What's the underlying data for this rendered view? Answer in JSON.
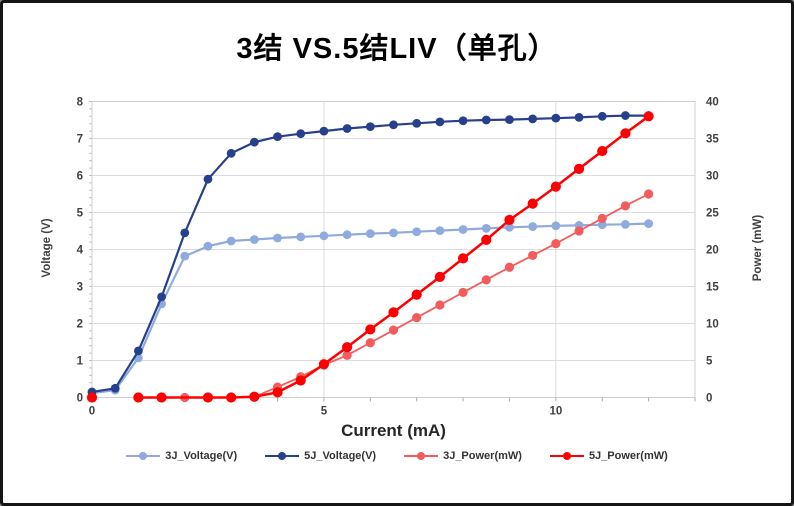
{
  "title": "3结 VS.5结LIV（单孔）",
  "axes": {
    "x": {
      "label": "Current (mA)",
      "ticks": [
        0,
        5,
        10
      ],
      "min": 0,
      "max": 13,
      "minor_step": 1
    },
    "y_left": {
      "label": "Voltage (V)",
      "ticks": [
        0,
        1,
        2,
        3,
        4,
        5,
        6,
        7,
        8
      ],
      "min": 0,
      "max": 8,
      "minor_step": 0.2
    },
    "y_right": {
      "label": "Power (mW)",
      "ticks": [
        0,
        5,
        10,
        15,
        20,
        25,
        30,
        35,
        40
      ],
      "min": 0,
      "max": 40
    }
  },
  "legend": [
    {
      "label": "3J_Voltage(V)",
      "color": "#8FAADC"
    },
    {
      "label": "5J_Voltage(V)",
      "color": "#27408B"
    },
    {
      "label": "3J_Power(mW)",
      "color": "#F25C5C"
    },
    {
      "label": "5J_Power(mW)",
      "color": "#FE0000"
    }
  ],
  "chart_data": {
    "type": "line",
    "title": "3结 VS.5结LIV（单孔）",
    "xlabel": "Current (mA)",
    "ylabel_left": "Voltage (V)",
    "ylabel_right": "Power (mW)",
    "xlim": [
      0,
      13
    ],
    "ylim_left": [
      0,
      8
    ],
    "ylim_right": [
      0,
      40
    ],
    "grid": {
      "horizontal": true,
      "vertical_at": [
        5,
        10
      ]
    },
    "legend_position": "bottom",
    "x": [
      0,
      0.5,
      1,
      1.5,
      2,
      2.5,
      3,
      3.5,
      4,
      4.5,
      5,
      5.5,
      6,
      6.5,
      7,
      7.5,
      8,
      8.5,
      9,
      9.5,
      10,
      10.5,
      11,
      11.5,
      12
    ],
    "series": [
      {
        "name": "3J_Voltage(V)",
        "axis": "left",
        "color": "#8FAADC",
        "line_width": 2.2,
        "marker_r": 4.4,
        "values": [
          0.12,
          0.2,
          1.07,
          2.53,
          3.82,
          4.09,
          4.23,
          4.27,
          4.31,
          4.34,
          4.37,
          4.4,
          4.43,
          4.45,
          4.48,
          4.51,
          4.54,
          4.57,
          4.6,
          4.62,
          4.64,
          4.65,
          4.67,
          4.68,
          4.7
        ]
      },
      {
        "name": "5J_Voltage(V)",
        "axis": "left",
        "color": "#27408B",
        "line_width": 2.2,
        "marker_r": 4.4,
        "values": [
          0.15,
          0.25,
          1.26,
          2.72,
          4.45,
          5.9,
          6.6,
          6.9,
          7.05,
          7.13,
          7.2,
          7.27,
          7.32,
          7.37,
          7.41,
          7.45,
          7.48,
          7.5,
          7.51,
          7.53,
          7.55,
          7.57,
          7.6,
          7.62,
          7.62
        ]
      },
      {
        "name": "3J_Power(mW)",
        "axis": "right",
        "color": "#F25C5C",
        "line_width": 1.8,
        "marker_r": 4.6,
        "values": [
          null,
          null,
          null,
          null,
          0,
          0,
          0,
          0.1,
          1.4,
          2.8,
          4.4,
          5.7,
          7.4,
          9.1,
          10.8,
          12.5,
          14.2,
          15.9,
          17.6,
          19.2,
          20.8,
          22.5,
          24.2,
          25.9,
          27.5
        ]
      },
      {
        "name": "5J_Power(mW)",
        "axis": "right",
        "color": "#FE0000",
        "line_width": 2.5,
        "marker_r": 5.1,
        "values": [
          0,
          null,
          0,
          0,
          0,
          0,
          0,
          0.1,
          0.7,
          2.3,
          4.5,
          6.8,
          9.2,
          11.5,
          13.9,
          16.3,
          18.8,
          21.3,
          24,
          26.2,
          28.5,
          30.9,
          33.3,
          35.7,
          38
        ],
        "no_marker_x": [
          2
        ]
      }
    ]
  }
}
